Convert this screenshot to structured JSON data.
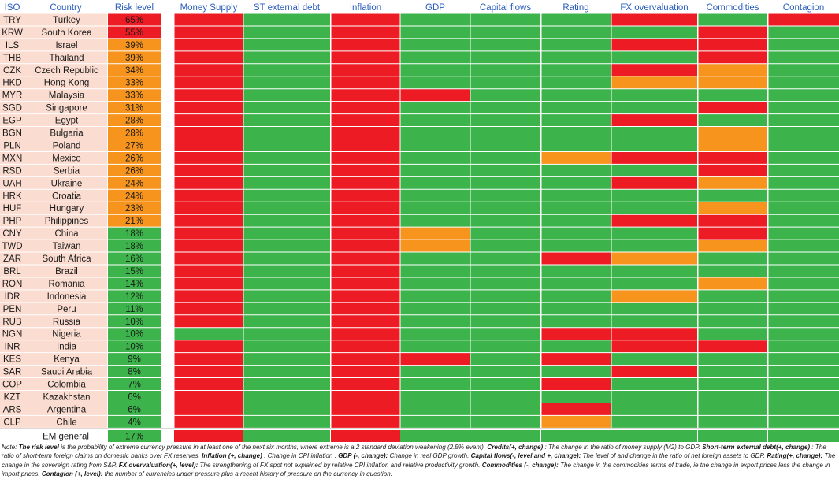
{
  "chart_data": {
    "type": "heatmap",
    "columns": [
      "ISO",
      "Country",
      "Risk level",
      "Money Supply",
      "ST external debt",
      "Inflation",
      "GDP",
      "Capital flows",
      "Rating",
      "FX overvaluation",
      "Commodities",
      "Contagion"
    ],
    "factor_columns": [
      "Money Supply",
      "ST external debt",
      "Inflation",
      "GDP",
      "Capital flows",
      "Rating",
      "FX overvaluation",
      "Commodities",
      "Contagion"
    ],
    "legend_codes": {
      "R": "red",
      "G": "green",
      "O": "orange"
    },
    "colors": {
      "R": "#ed1c24",
      "G": "#3cb44b",
      "O": "#f7941d",
      "country_bg": "#fbdcd0",
      "grid": "#ffffff",
      "header_text": "#2a5dbd",
      "text": "#1a1a1a"
    },
    "rows": [
      {
        "iso": "TRY",
        "country": "Turkey",
        "risk": "65%",
        "risk_value": 65,
        "risk_band": "R",
        "factors": "RGRGGGRGR"
      },
      {
        "iso": "KRW",
        "country": "South Korea",
        "risk": "55%",
        "risk_value": 55,
        "risk_band": "R",
        "factors": "RGRGGGGRG"
      },
      {
        "iso": "ILS",
        "country": "Israel",
        "risk": "39%",
        "risk_value": 39,
        "risk_band": "O",
        "factors": "RGRGGGRRG"
      },
      {
        "iso": "THB",
        "country": "Thailand",
        "risk": "39%",
        "risk_value": 39,
        "risk_band": "O",
        "factors": "RGRGGGGRG"
      },
      {
        "iso": "CZK",
        "country": "Czech Republic",
        "risk": "34%",
        "risk_value": 34,
        "risk_band": "O",
        "factors": "RGRGGGROG"
      },
      {
        "iso": "HKD",
        "country": "Hong Kong",
        "risk": "33%",
        "risk_value": 33,
        "risk_band": "O",
        "factors": "RGRGGGOOG"
      },
      {
        "iso": "MYR",
        "country": "Malaysia",
        "risk": "33%",
        "risk_value": 33,
        "risk_band": "O",
        "factors": "RGRRGGGGG"
      },
      {
        "iso": "SGD",
        "country": "Singapore",
        "risk": "31%",
        "risk_value": 31,
        "risk_band": "O",
        "factors": "RGRGGGGRG"
      },
      {
        "iso": "EGP",
        "country": "Egypt",
        "risk": "28%",
        "risk_value": 28,
        "risk_band": "O",
        "factors": "RGRGGGRGG"
      },
      {
        "iso": "BGN",
        "country": "Bulgaria",
        "risk": "28%",
        "risk_value": 28,
        "risk_band": "O",
        "factors": "RGRGGGGOG"
      },
      {
        "iso": "PLN",
        "country": "Poland",
        "risk": "27%",
        "risk_value": 27,
        "risk_band": "O",
        "factors": "RGRGGGGOG"
      },
      {
        "iso": "MXN",
        "country": "Mexico",
        "risk": "26%",
        "risk_value": 26,
        "risk_band": "O",
        "factors": "RGRGGORRG"
      },
      {
        "iso": "RSD",
        "country": "Serbia",
        "risk": "26%",
        "risk_value": 26,
        "risk_band": "O",
        "factors": "RGRGGGGRG"
      },
      {
        "iso": "UAH",
        "country": "Ukraine",
        "risk": "24%",
        "risk_value": 24,
        "risk_band": "O",
        "factors": "RGRGGGROG"
      },
      {
        "iso": "HRK",
        "country": "Croatia",
        "risk": "24%",
        "risk_value": 24,
        "risk_band": "O",
        "factors": "RGRGGGGGG"
      },
      {
        "iso": "HUF",
        "country": "Hungary",
        "risk": "23%",
        "risk_value": 23,
        "risk_band": "O",
        "factors": "RGRGGGGOG"
      },
      {
        "iso": "PHP",
        "country": "Philippines",
        "risk": "21%",
        "risk_value": 21,
        "risk_band": "O",
        "factors": "RGRGGGRRG"
      },
      {
        "iso": "CNY",
        "country": "China",
        "risk": "18%",
        "risk_value": 18,
        "risk_band": "G",
        "factors": "RGROGGGRG"
      },
      {
        "iso": "TWD",
        "country": "Taiwan",
        "risk": "18%",
        "risk_value": 18,
        "risk_band": "G",
        "factors": "RGROGGGOG"
      },
      {
        "iso": "ZAR",
        "country": "South Africa",
        "risk": "16%",
        "risk_value": 16,
        "risk_band": "G",
        "factors": "RGRGGROGG"
      },
      {
        "iso": "BRL",
        "country": "Brazil",
        "risk": "15%",
        "risk_value": 15,
        "risk_band": "G",
        "factors": "RGRGGGGGG"
      },
      {
        "iso": "RON",
        "country": "Romania",
        "risk": "14%",
        "risk_value": 14,
        "risk_band": "G",
        "factors": "RGRGGGGOG"
      },
      {
        "iso": "IDR",
        "country": "Indonesia",
        "risk": "12%",
        "risk_value": 12,
        "risk_band": "G",
        "factors": "RGRGGGOGG"
      },
      {
        "iso": "PEN",
        "country": "Peru",
        "risk": "11%",
        "risk_value": 11,
        "risk_band": "G",
        "factors": "RGRGGGGGG"
      },
      {
        "iso": "RUB",
        "country": "Russia",
        "risk": "10%",
        "risk_value": 10,
        "risk_band": "G",
        "factors": "RGRGGGGGG"
      },
      {
        "iso": "NGN",
        "country": "Nigeria",
        "risk": "10%",
        "risk_value": 10,
        "risk_band": "G",
        "factors": "GGRGGRRGG"
      },
      {
        "iso": "INR",
        "country": "India",
        "risk": "10%",
        "risk_value": 10,
        "risk_band": "G",
        "factors": "RGRGGGRRG"
      },
      {
        "iso": "KES",
        "country": "Kenya",
        "risk": "9%",
        "risk_value": 9,
        "risk_band": "G",
        "factors": "RGRRGRGGG"
      },
      {
        "iso": "SAR",
        "country": "Saudi Arabia",
        "risk": "8%",
        "risk_value": 8,
        "risk_band": "G",
        "factors": "RGRGGGRGG"
      },
      {
        "iso": "COP",
        "country": "Colombia",
        "risk": "7%",
        "risk_value": 7,
        "risk_band": "G",
        "factors": "RGRGGRGGG"
      },
      {
        "iso": "KZT",
        "country": "Kazakhstan",
        "risk": "6%",
        "risk_value": 6,
        "risk_band": "G",
        "factors": "RGRGGGGGG"
      },
      {
        "iso": "ARS",
        "country": "Argentina",
        "risk": "6%",
        "risk_value": 6,
        "risk_band": "G",
        "factors": "RGRGGRGGG"
      },
      {
        "iso": "CLP",
        "country": "Chile",
        "risk": "4%",
        "risk_value": 4,
        "risk_band": "G",
        "factors": "RGRGGOGGG"
      }
    ],
    "summary_row": {
      "label": "EM general",
      "risk": "17%",
      "risk_value": 17,
      "risk_band": "G",
      "factors": "RGRGGGGGG"
    }
  },
  "note": [
    {
      "t": "Note:  ",
      "b": false
    },
    {
      "t": "The risk level",
      "b": true
    },
    {
      "t": " is the probability of extreme currency pressure in at least one of the next six months, where extreme is a 2 standard deviation weakening (2.5% event).  ",
      "b": false
    },
    {
      "t": "Credits(+, change) ",
      "b": true
    },
    {
      "t": ": The change in the ratio of money supply (M2) to GDP.  ",
      "b": false
    },
    {
      "t": "Short-term external debt(+, change) ",
      "b": true
    },
    {
      "t": ": The ratio of short-term foreign claims on domestic banks over FX reserves.   ",
      "b": false
    },
    {
      "t": "Inflation (+, change) ",
      "b": true
    },
    {
      "t": ": Change in CPI inflation .  ",
      "b": false
    },
    {
      "t": "GDP (-, change):",
      "b": true
    },
    {
      "t": "  Change in real GDP growth.  ",
      "b": false
    },
    {
      "t": "Capital flows(-, level and +, change):",
      "b": true
    },
    {
      "t": " The level of and change in the ratio of net foreign assets to GDP.  ",
      "b": false
    },
    {
      "t": "Rating(+, change):",
      "b": true
    },
    {
      "t": " The change in the sovereign rating from S&P.  ",
      "b": false
    },
    {
      "t": "FX overvaluation(+, level):",
      "b": true
    },
    {
      "t": "  The strengthening of FX spot not explained by relative CPI inflation and relative productivity growth.  ",
      "b": false
    },
    {
      "t": "Commodities (-, change):",
      "b": true
    },
    {
      "t": " The change in the commodities terms of trade, ie the change in export prices less the change in import prices.  ",
      "b": false
    },
    {
      "t": "Contagion (+, level):",
      "b": true
    },
    {
      "t": "  the number of currencies under pressure plus a recent history of pressure on the currency in question.",
      "b": false
    }
  ]
}
